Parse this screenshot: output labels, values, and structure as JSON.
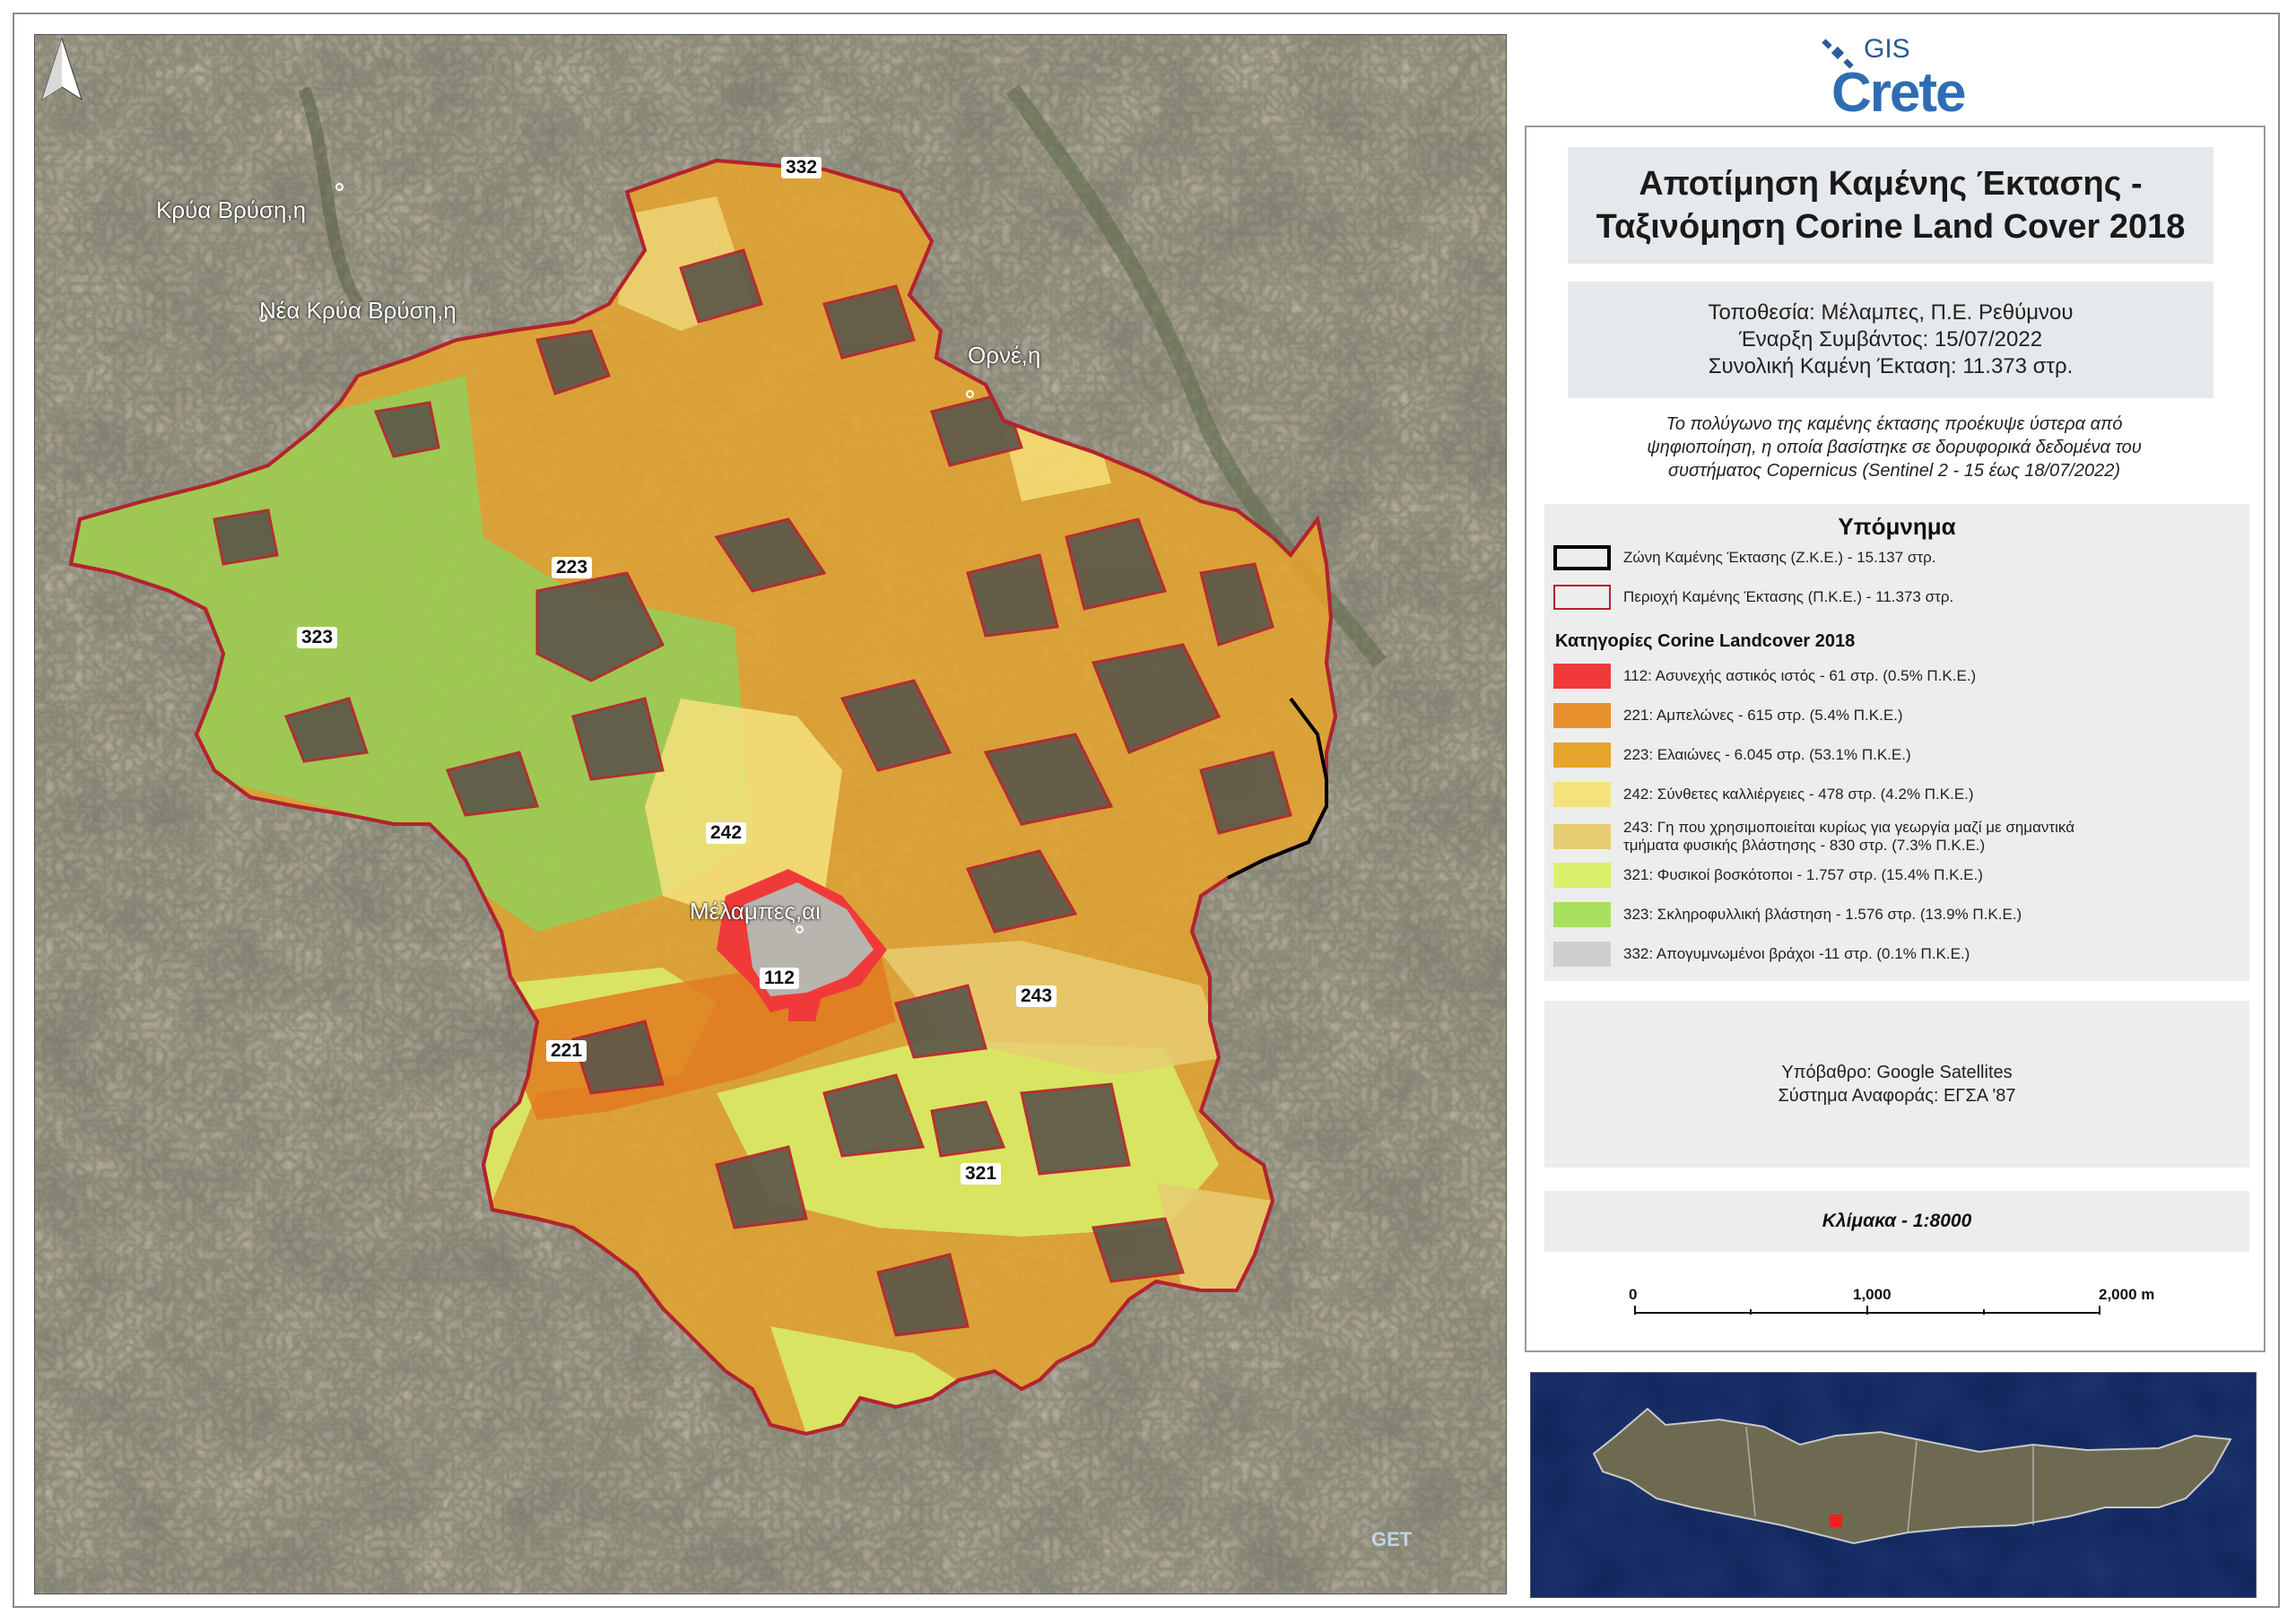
{
  "places": [
    {
      "name": "Κρύα Βρύση,η"
    },
    {
      "name": "Νέα Κρύα Βρύση,η"
    },
    {
      "name": "Ορνέ,η"
    },
    {
      "name": "Μέλαμπες,αι"
    }
  ],
  "code_labels": [
    "332",
    "223",
    "323",
    "242",
    "112",
    "243",
    "221",
    "321"
  ],
  "logo": {
    "gis": "GIS",
    "crete": "Crete"
  },
  "watermark": "GET",
  "title": {
    "line1": "Αποτίμηση Καμένης Έκτασης -",
    "line2": "Ταξινόμηση Corine Land Cover 2018"
  },
  "info": {
    "location": "Τοποθεσία: Μέλαμπες, Π.Ε. Ρεθύμνου",
    "start": "Έναρξη Συμβάντος: 15/07/2022",
    "area": "Συνολική Καμένη Έκταση: 11.373 στρ."
  },
  "note": {
    "line1": "Το πολύγωνο της καμένης έκτασης προέκυψε ύστερα από",
    "line2": "ψηφιοποίηση, η οποία βασίστηκε σε δορυφορικά δεδομένα του",
    "line3": "συστήματος Copernicus (Sentinel 2 - 15 έως 18/07/2022)"
  },
  "legend": {
    "title": "Υπόμνημα",
    "zone": "Ζώνη Καμένης Έκτασης (Ζ.Κ.Ε.) - 15.137 στρ.",
    "area": "Περιοχή Καμένης Έκτασης (Π.Κ.Ε.) - 11.373 στρ.",
    "subtitle": "Κατηγορίες Corine Landcover 2018",
    "classes": [
      {
        "label": "112: Ασυνεχής αστικός ιστός - 61 στρ. (0.5% Π.Κ.Ε.)",
        "color": "#f03a3a"
      },
      {
        "label": "221: Αμπελώνες - 615 στρ. (5.4% Π.Κ.Ε.)",
        "color": "#e8902e"
      },
      {
        "label": "223: Ελαιώνες - 6.045 στρ. (53.1% Π.Κ.Ε.)",
        "color": "#e6a52c"
      },
      {
        "label": "242: Σύνθετες καλλιέργειες - 478 στρ. (4.2% Π.Κ.Ε.)",
        "color": "#f6e27c"
      },
      {
        "label": "243: Γη που χρησιμοποιείται κυρίως για γεωργία μαζί με σημαντικά",
        "label2": "τμήματα φυσικής βλάστησης - 830 στρ. (7.3% Π.Κ.Ε.)",
        "color": "#e8cc72"
      },
      {
        "label": "321: Φυσικοί βοσκότοποι - 1.757 στρ. (15.4% Π.Κ.Ε.)",
        "color": "#d8f06a"
      },
      {
        "label": "323: Σκληροφυλλική βλάστηση - 1.576 στρ. (13.9% Π.Κ.Ε.)",
        "color": "#a8e060"
      },
      {
        "label": "332: Απογυμνωμένοι βράχοι -11 στρ. (0.1% Π.Κ.Ε.)",
        "color": "#cfcfcf"
      }
    ]
  },
  "source": {
    "basemap": "Υπόβαθρο: Google Satellites",
    "crs": "Σύστημα Αναφοράς: ΕΓΣΑ '87"
  },
  "scale": {
    "text": "Κλίμακα - 1:8000",
    "ticks": [
      "0",
      "1,000",
      "2,000 m"
    ]
  },
  "colors": {
    "zone_outline": "#000000",
    "area_outline": "#b3232f",
    "olives": "#e6a52c",
    "vineyards": "#e8902e",
    "urban": "#f03a3a",
    "complex": "#f6e27c",
    "agri_natural": "#e8cc72",
    "pasture": "#d8f06a",
    "sclerophyll": "#a8e060"
  }
}
